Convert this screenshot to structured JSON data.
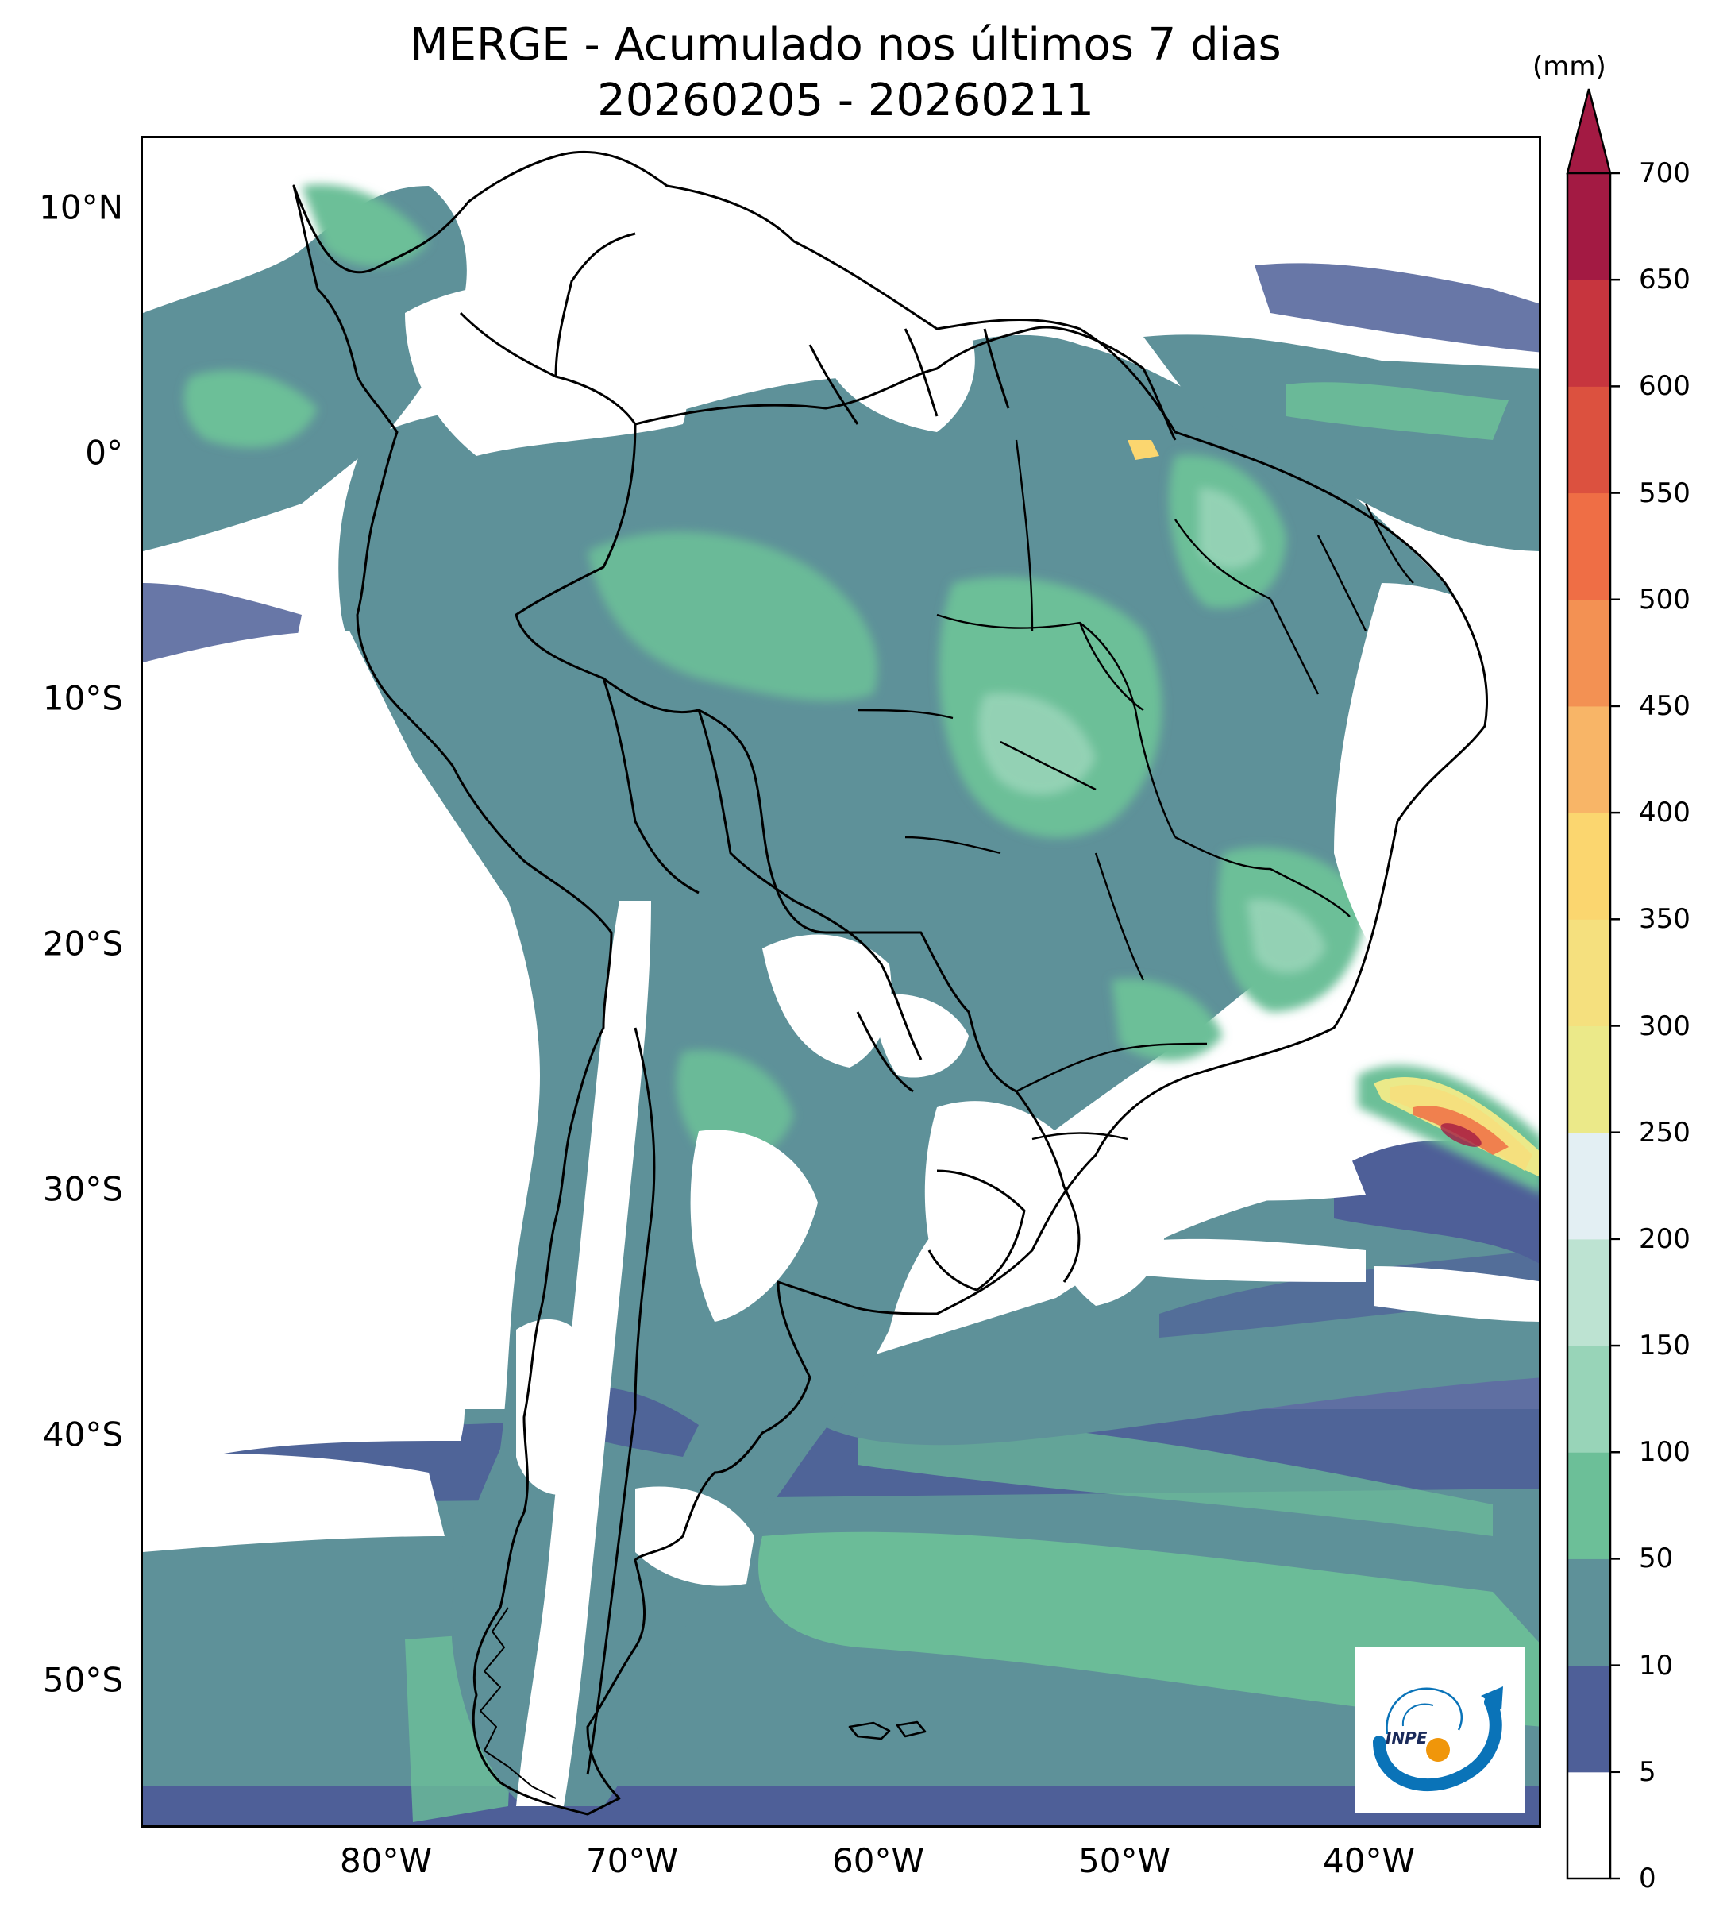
{
  "title": {
    "line1": "MERGE - Acumulado nos últimos 7 dias",
    "line2": "20260205 - 20260211"
  },
  "axes": {
    "lat_ticks": [
      "10°N",
      "0°",
      "10°S",
      "20°S",
      "30°S",
      "40°S",
      "50°S"
    ],
    "lon_ticks": [
      "80°W",
      "70°W",
      "60°W",
      "50°W",
      "40°W"
    ]
  },
  "colorbar": {
    "unit": "(mm)",
    "levels": [
      "0",
      "5",
      "10",
      "50",
      "100",
      "150",
      "200",
      "250",
      "300",
      "350",
      "400",
      "450",
      "500",
      "550",
      "600",
      "650",
      "700"
    ],
    "colors": [
      "#ffffff",
      "#4e5f98",
      "#5e9199",
      "#6cbf98",
      "#98d4b8",
      "#bde3d2",
      "#e3eff3",
      "#ebe989",
      "#f5e07e",
      "#fbd66f",
      "#f8b567",
      "#f39153",
      "#ef6e45",
      "#dc513f",
      "#c7353e",
      "#a31a43"
    ]
  },
  "logo": {
    "text": "INPE",
    "colors": {
      "arc": "#0a73b8",
      "sun": "#f0960a"
    }
  }
}
